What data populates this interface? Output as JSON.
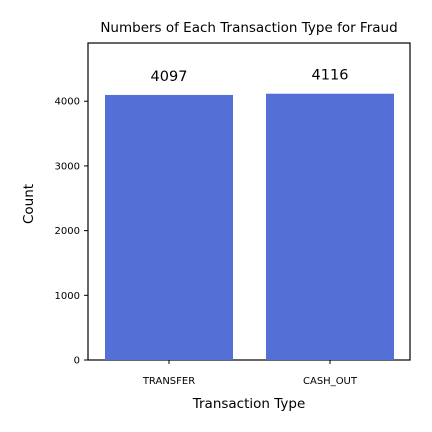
{
  "chart_data": {
    "type": "bar",
    "title": "Numbers of Each Transaction Type for Fraud",
    "xlabel": "Transaction Type",
    "ylabel": "Count",
    "categories": [
      "TRANSFER",
      "CASH_OUT"
    ],
    "values": [
      4097,
      4116
    ],
    "data_labels": [
      "4097",
      "4116"
    ],
    "ylim": [
      0,
      4900
    ],
    "yticks": [
      0,
      1000,
      2000,
      3000,
      4000
    ],
    "ytick_labels": [
      "0",
      "1000",
      "2000",
      "3000",
      "4000"
    ],
    "bar_color": "#5470d6",
    "grid": false,
    "legend": false
  }
}
